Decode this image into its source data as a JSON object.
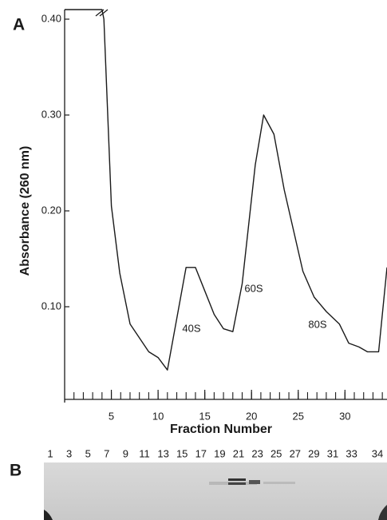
{
  "chart_data": {
    "type": "line",
    "panel_label": "A",
    "x_label": "Fraction Number",
    "y_label": "Absorbance (260 nm)",
    "x": [
      0,
      4,
      4.2,
      5,
      5.9,
      7,
      9,
      10,
      11,
      13,
      14,
      16,
      17,
      18,
      19,
      20.4,
      21.3,
      22.4,
      23.5,
      25.5,
      26.7,
      28,
      29.4,
      30.4,
      31.5,
      32.4,
      33.6,
      34.5
    ],
    "values": [
      0.41,
      0.41,
      0.4,
      0.205,
      0.135,
      0.082,
      0.053,
      0.047,
      0.034,
      0.141,
      0.141,
      0.092,
      0.077,
      0.074,
      0.124,
      0.248,
      0.3,
      0.28,
      0.222,
      0.137,
      0.11,
      0.095,
      0.082,
      0.062,
      0.058,
      0.053,
      0.053,
      0.141
    ],
    "color": "#1a1a1a",
    "xlim": [
      0,
      34.5
    ],
    "ylim": [
      0,
      0.41
    ],
    "xticks": [
      5,
      10,
      15,
      20,
      25,
      30
    ],
    "xminor_ticks": [
      1,
      2,
      3,
      4,
      5,
      6,
      7,
      8,
      9,
      10,
      11,
      12,
      13,
      14,
      15,
      16,
      17,
      18,
      19,
      20,
      21,
      22,
      23,
      24,
      25,
      26,
      27,
      28,
      29,
      30,
      31,
      32,
      33,
      34
    ],
    "yticks": [
      {
        "value": 0.1,
        "label": "0.10"
      },
      {
        "value": 0.2,
        "label": "0.20"
      },
      {
        "value": 0.3,
        "label": "0.30"
      },
      {
        "value": 0.4,
        "label": "0.40"
      }
    ],
    "annotations": [
      "40S",
      "60S",
      "80S"
    ]
  },
  "gel": {
    "panel_label": "B",
    "lanes": [
      "1",
      "3",
      "5",
      "7",
      "9",
      "11",
      "13",
      "15",
      "17",
      "19",
      "21",
      "23",
      "25",
      "27",
      "29",
      "31",
      "33",
      "34"
    ]
  }
}
